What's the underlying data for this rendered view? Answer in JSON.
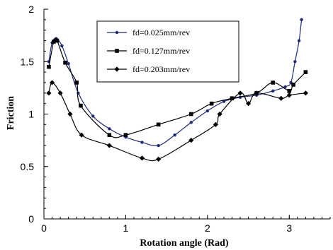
{
  "chart_data": {
    "type": "line",
    "title": "",
    "xlabel": "Rotation angle (Rad)",
    "ylabel": "Friction",
    "xlim": [
      0,
      3.5
    ],
    "ylim": [
      0,
      2
    ],
    "xticks": [
      0,
      1,
      2,
      3
    ],
    "yticks": [
      0,
      0.5,
      1,
      1.5,
      2
    ],
    "x_minor_step": 0.1,
    "y_minor_step": 0.1,
    "grid": false,
    "legend_position": "top-center",
    "series": [
      {
        "name": "fd=0.025mm/rev",
        "color": "#1f2a7a",
        "marker": "circle",
        "x": [
          0.06,
          0.1,
          0.15,
          0.22,
          0.3,
          0.42,
          0.6,
          0.8,
          1.0,
          1.2,
          1.4,
          1.6,
          1.8,
          2.0,
          2.2,
          2.4,
          2.6,
          2.8,
          2.95,
          3.02,
          3.07,
          3.12,
          3.15
        ],
        "y": [
          1.5,
          1.68,
          1.72,
          1.65,
          1.48,
          1.2,
          0.98,
          0.86,
          0.78,
          0.73,
          0.7,
          0.8,
          0.92,
          1.03,
          1.12,
          1.16,
          1.18,
          1.22,
          1.26,
          1.3,
          1.5,
          1.7,
          1.9
        ]
      },
      {
        "name": "fd=0.127mm/rev",
        "color": "#000000",
        "marker": "square",
        "x": [
          0.06,
          0.12,
          0.16,
          0.26,
          0.4,
          0.45,
          0.8,
          1.0,
          1.4,
          1.8,
          2.05,
          2.3,
          2.6,
          2.8,
          3.0,
          3.05,
          3.2
        ],
        "y": [
          1.45,
          1.69,
          1.7,
          1.49,
          1.3,
          1.08,
          0.8,
          0.8,
          0.9,
          1.0,
          1.1,
          1.15,
          1.2,
          1.3,
          1.22,
          1.28,
          1.4
        ]
      },
      {
        "name": "fd=0.203mm/rev",
        "color": "#000000",
        "marker": "diamond",
        "x": [
          0.06,
          0.1,
          0.2,
          0.32,
          0.46,
          0.8,
          1.2,
          1.4,
          1.8,
          2.1,
          2.15,
          2.4,
          2.5,
          2.6,
          2.9,
          3.0,
          3.2
        ],
        "y": [
          1.2,
          1.3,
          1.2,
          1.0,
          0.8,
          0.7,
          0.58,
          0.57,
          0.75,
          0.9,
          1.0,
          1.2,
          1.1,
          1.2,
          1.15,
          1.18,
          1.2
        ]
      }
    ]
  }
}
